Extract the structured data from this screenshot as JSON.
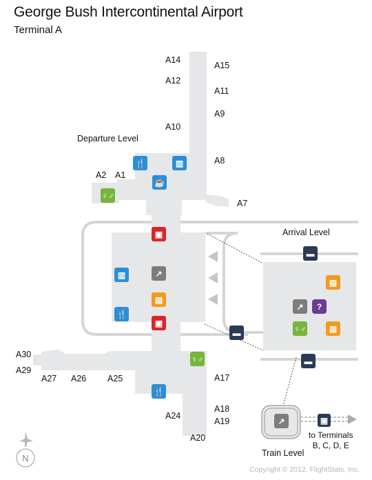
{
  "header": {
    "title": "George Bush Intercontinental Airport",
    "subtitle": "Terminal A"
  },
  "levels": {
    "departure": "Departure Level",
    "arrival": "Arrival Level",
    "train": "Train Level"
  },
  "gates": [
    "A14",
    "A15",
    "A12",
    "A11",
    "A9",
    "A10",
    "A8",
    "A2",
    "A1",
    "A7",
    "A30",
    "A29",
    "A27",
    "A26",
    "A25",
    "A17",
    "A18",
    "A24",
    "A19",
    "A20"
  ],
  "train_destination": {
    "line1": "to Terminals",
    "line2": "B, C, D, E"
  },
  "compass": {
    "label": "N"
  },
  "copyright": "Copyright © 2012, FlightStats, Inc.",
  "icons": {
    "restaurant": "fork-knife-icon",
    "restroom": "restroom-icon",
    "shop": "shopping-icon",
    "cafe": "coffee-icon",
    "security": "security-checkpoint-icon",
    "escalator": "escalator-icon",
    "baggage": "baggage-icon",
    "info": "information-icon",
    "car": "car-rental-icon",
    "bus": "shuttle-bus-icon",
    "train": "train-icon",
    "plane": "airplane-icon"
  },
  "colors": {
    "terminal": "#e6e7e8",
    "dining": "#2b8fd6",
    "restroom": "#76b63b",
    "security": "#d9262b",
    "baggage": "#f39a1e",
    "info": "#6a3c93",
    "transport": "#2b3a55"
  }
}
